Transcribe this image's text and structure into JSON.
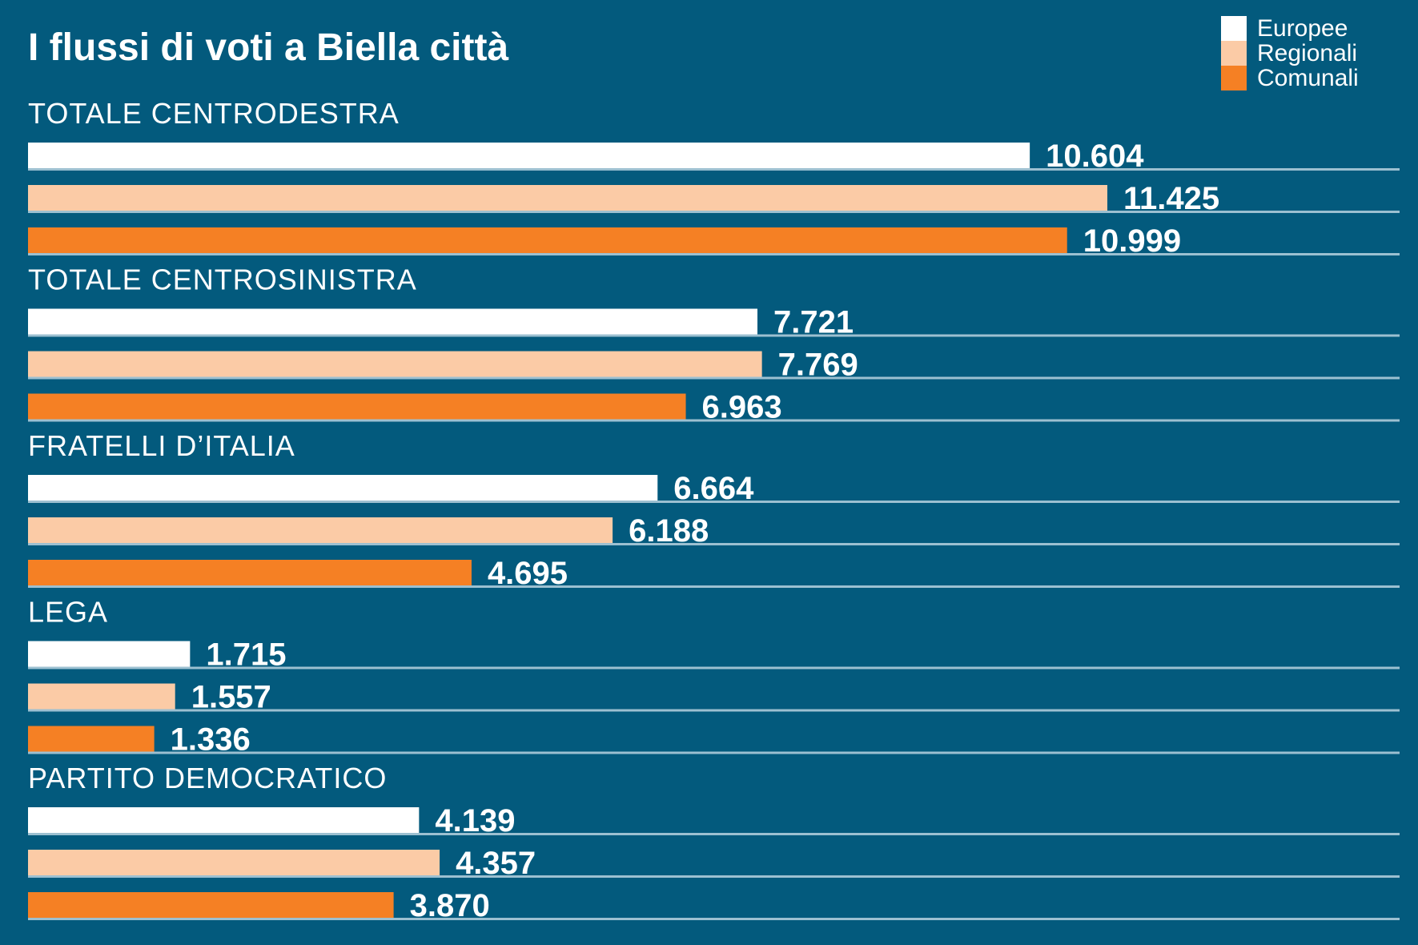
{
  "chart_data": {
    "type": "bar",
    "orientation": "horizontal",
    "title": "I flussi di voti a Biella città",
    "categories": [
      "TOTALE CENTRODESTRA",
      "TOTALE CENTROSINISTRA",
      "FRATELLI D’ITALIA",
      "LEGA",
      "PARTITO DEMOCRATICO"
    ],
    "series": [
      {
        "name": "Europee",
        "color": "#ffffff",
        "values": [
          10604,
          7721,
          6664,
          1715,
          4139
        ],
        "labels": [
          "10.604",
          "7.721",
          "6.664",
          "1.715",
          "4.139"
        ]
      },
      {
        "name": "Regionali",
        "color": "#fbcba6",
        "values": [
          11425,
          7769,
          6188,
          1557,
          4357
        ],
        "labels": [
          "11.425",
          "7.769",
          "6.188",
          "1.557",
          "4.357"
        ]
      },
      {
        "name": "Comunali",
        "color": "#f58024",
        "values": [
          10999,
          6963,
          4695,
          1336,
          3870
        ],
        "labels": [
          "10.999",
          "6.963",
          "4.695",
          "1.336",
          "3.870"
        ]
      }
    ],
    "legend": "top-right",
    "grid": false
  },
  "colors": {
    "background": "#035a7d",
    "baseline": "#9cc0d1"
  }
}
